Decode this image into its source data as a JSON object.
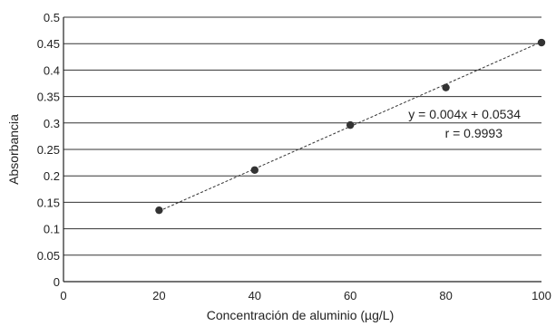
{
  "chart_data": {
    "type": "scatter",
    "xlabel": "Concentración de aluminio (µg/L)",
    "ylabel": "Absorbancia",
    "xlim": [
      0,
      100
    ],
    "ylim": [
      0,
      0.5
    ],
    "x_ticks": [
      "0",
      "20",
      "40",
      "60",
      "80",
      "100"
    ],
    "y_ticks": [
      "0",
      "0.05",
      "0.1",
      "0.15",
      "0.2",
      "0.25",
      "0.3",
      "0.35",
      "0.4",
      "0.45",
      "0.5"
    ],
    "grid": "horizontal",
    "points": [
      {
        "x": 20,
        "y": 0.135
      },
      {
        "x": 40,
        "y": 0.211
      },
      {
        "x": 60,
        "y": 0.296
      },
      {
        "x": 80,
        "y": 0.367
      },
      {
        "x": 100,
        "y": 0.452
      }
    ],
    "trendline": {
      "style": "dashed",
      "slope": 0.004,
      "intercept": 0.0534,
      "x_range": [
        20,
        100
      ]
    },
    "annotations": [
      "y = 0.004x + 0.0534",
      "r = 0.9993"
    ]
  }
}
